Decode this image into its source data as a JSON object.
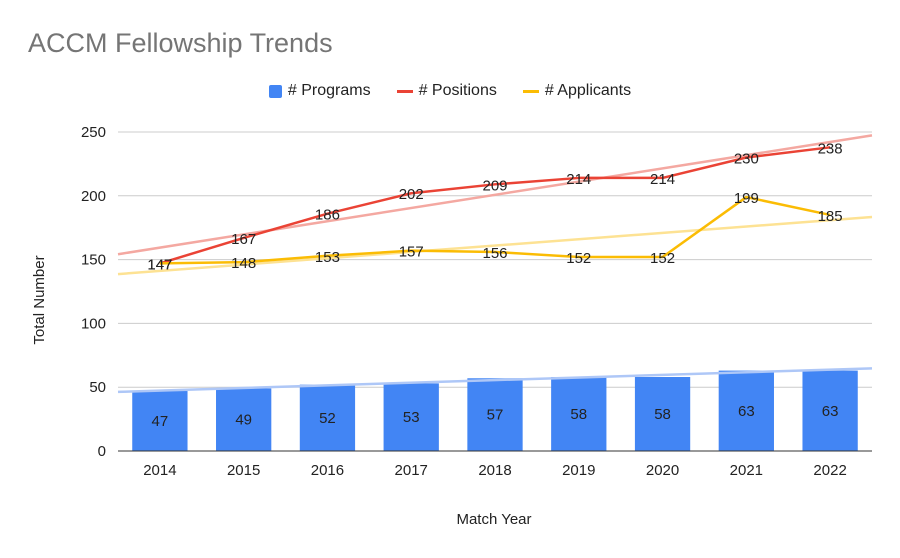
{
  "chart_data": {
    "type": "bar",
    "title": "ACCM Fellowship Trends",
    "xlabel": "Match Year",
    "ylabel": "Total Number",
    "ylim": [
      0,
      250
    ],
    "yticks": [
      0,
      50,
      100,
      150,
      200,
      250
    ],
    "categories": [
      "2014",
      "2015",
      "2016",
      "2017",
      "2018",
      "2019",
      "2020",
      "2021",
      "2022"
    ],
    "grid": true,
    "legend_position": "top",
    "series": [
      {
        "name": "# Programs",
        "kind": "bar",
        "color": "#4285f4",
        "trendline_color": "#aec7f7",
        "values": [
          47,
          49,
          52,
          53,
          57,
          58,
          58,
          63,
          63
        ]
      },
      {
        "name": "# Positions",
        "kind": "line",
        "color": "#ea4335",
        "trendline_color": "#f4a8a1",
        "values": [
          147,
          167,
          186,
          202,
          209,
          214,
          214,
          230,
          238
        ]
      },
      {
        "name": "# Applicants",
        "kind": "line",
        "color": "#fbbc04",
        "trendline_color": "#fde293",
        "values": [
          147,
          148,
          153,
          157,
          156,
          152,
          152,
          199,
          185
        ]
      }
    ]
  }
}
